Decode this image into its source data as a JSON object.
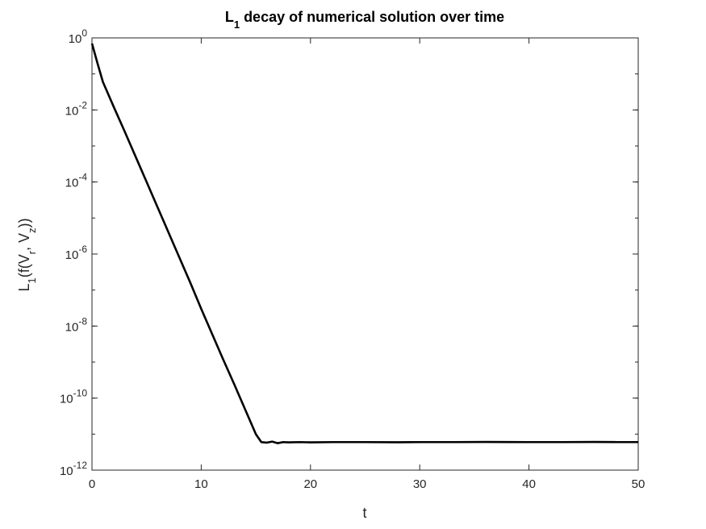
{
  "chart_data": {
    "type": "line",
    "title": {
      "main": "L",
      "sub": "1",
      "rest": " decay of numerical solution over time"
    },
    "xlabel": "t",
    "ylabel": {
      "p1": "L",
      "s1": "1",
      "p2": "(f(V",
      "s2": "r",
      "p3": ", V",
      "s3": "z",
      "p4": "))"
    },
    "xlim": [
      0,
      50
    ],
    "ylim_exponent": [
      -12,
      0
    ],
    "yscale": "log",
    "grid": false,
    "x_ticks": [
      {
        "value": 0,
        "label": "0"
      },
      {
        "value": 10,
        "label": "10"
      },
      {
        "value": 20,
        "label": "20"
      },
      {
        "value": 30,
        "label": "30"
      },
      {
        "value": 40,
        "label": "40"
      },
      {
        "value": 50,
        "label": "50"
      }
    ],
    "y_ticks": [
      {
        "exponent": 0,
        "base": "10",
        "sup": "0"
      },
      {
        "exponent": -2,
        "base": "10",
        "sup": "-2"
      },
      {
        "exponent": -4,
        "base": "10",
        "sup": "-4"
      },
      {
        "exponent": -6,
        "base": "10",
        "sup": "-6"
      },
      {
        "exponent": -8,
        "base": "10",
        "sup": "-8"
      },
      {
        "exponent": -10,
        "base": "10",
        "sup": "-10"
      },
      {
        "exponent": -12,
        "base": "10",
        "sup": "-12"
      }
    ],
    "series": [
      {
        "color": "#000000",
        "points": [
          [
            0,
            0.7
          ],
          [
            0.5,
            0.2
          ],
          [
            1,
            0.06
          ],
          [
            2,
            0.012
          ],
          [
            3,
            0.0025
          ],
          [
            4,
            0.0005
          ],
          [
            5,
            0.0001
          ],
          [
            6,
            2e-05
          ],
          [
            7,
            4e-06
          ],
          [
            8,
            8e-07
          ],
          [
            9,
            1.6e-07
          ],
          [
            10,
            3e-08
          ],
          [
            11,
            6e-09
          ],
          [
            12,
            1.2e-09
          ],
          [
            13,
            2.5e-10
          ],
          [
            14,
            5e-11
          ],
          [
            15,
            1e-11
          ],
          [
            15.5,
            6e-12
          ],
          [
            16,
            5.8e-12
          ],
          [
            16.5,
            6.2e-12
          ],
          [
            17,
            5.6e-12
          ],
          [
            17.5,
            6e-12
          ],
          [
            18,
            5.9e-12
          ],
          [
            19,
            6e-12
          ],
          [
            20,
            5.9e-12
          ],
          [
            22,
            6e-12
          ],
          [
            25,
            6e-12
          ],
          [
            28,
            5.95e-12
          ],
          [
            30,
            6e-12
          ],
          [
            33,
            6e-12
          ],
          [
            36,
            6.05e-12
          ],
          [
            40,
            6e-12
          ],
          [
            43,
            6e-12
          ],
          [
            46,
            6.05e-12
          ],
          [
            48,
            6e-12
          ],
          [
            50,
            6e-12
          ]
        ]
      }
    ]
  }
}
